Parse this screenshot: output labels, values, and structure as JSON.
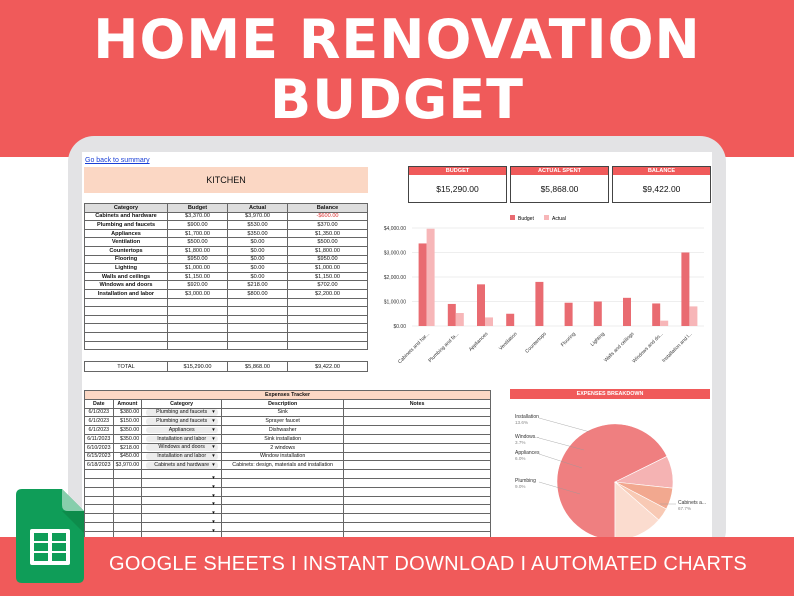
{
  "banner": {
    "title_line1": "HOME RENOVATION",
    "title_line2": "BUDGET",
    "footer_text": "GOOGLE SHEETS I INSTANT DOWNLOAD I AUTOMATED CHARTS"
  },
  "icons": {
    "sheets_logo": "google-sheets-icon"
  },
  "colors": {
    "accent": "#f05a5a",
    "peach": "#fbd7c4",
    "budget_bar": "#e96b71",
    "actual_bar": "#f7b6b8"
  },
  "sheet": {
    "back_link": "Go back to summary",
    "section_title": "KITCHEN",
    "table_headers": [
      "Category",
      "Budget",
      "Actual",
      "Balance"
    ],
    "rows": [
      {
        "category": "Cabinets and hardware",
        "budget": "$3,370.00",
        "actual": "$3,970.00",
        "balance": "-$600.00"
      },
      {
        "category": "Plumbing and faucets",
        "budget": "$900.00",
        "actual": "$530.00",
        "balance": "$370.00"
      },
      {
        "category": "Appliances",
        "budget": "$1,700.00",
        "actual": "$350.00",
        "balance": "$1,350.00"
      },
      {
        "category": "Ventilation",
        "budget": "$500.00",
        "actual": "$0.00",
        "balance": "$500.00"
      },
      {
        "category": "Countertops",
        "budget": "$1,800.00",
        "actual": "$0.00",
        "balance": "$1,800.00"
      },
      {
        "category": "Flooring",
        "budget": "$950.00",
        "actual": "$0.00",
        "balance": "$950.00"
      },
      {
        "category": "Lighting",
        "budget": "$1,000.00",
        "actual": "$0.00",
        "balance": "$1,000.00"
      },
      {
        "category": "Walls and ceilings",
        "budget": "$1,150.00",
        "actual": "$0.00",
        "balance": "$1,150.00"
      },
      {
        "category": "Windows and doors",
        "budget": "$920.00",
        "actual": "$218.00",
        "balance": "$702.00"
      },
      {
        "category": "Installation and labor",
        "budget": "$3,000.00",
        "actual": "$800.00",
        "balance": "$2,200.00"
      }
    ],
    "total": {
      "label": "TOTAL",
      "budget": "$15,290.00",
      "actual": "$5,868.00",
      "balance": "$9,422.00"
    },
    "kpis": {
      "budget_label": "BUDGET",
      "budget_value": "$15,290.00",
      "actual_label": "ACTUAL SPENT",
      "actual_value": "$5,868.00",
      "balance_label": "BALANCE",
      "balance_value": "$9,422.00"
    },
    "tracker": {
      "title": "Expenses Tracker",
      "headers": [
        "Date",
        "Amount",
        "Category",
        "Description",
        "Notes"
      ],
      "rows": [
        {
          "date": "6/1/2023",
          "amount": "$380.00",
          "category": "Plumbing and faucets",
          "description": "Sink"
        },
        {
          "date": "6/1/2023",
          "amount": "$150.00",
          "category": "Plumbing and faucets",
          "description": "Sprayer faucet"
        },
        {
          "date": "6/1/2023",
          "amount": "$350.00",
          "category": "Appliances",
          "description": "Dishwasher"
        },
        {
          "date": "6/11/2023",
          "amount": "$350.00",
          "category": "Installation and labor",
          "description": "Sink installation"
        },
        {
          "date": "6/10/2023",
          "amount": "$218.00",
          "category": "Windows and doors",
          "description": "2 windows"
        },
        {
          "date": "6/15/2023",
          "amount": "$450.00",
          "category": "Installation and labor",
          "description": "Window installation"
        },
        {
          "date": "6/18/2023",
          "amount": "$3,970.00",
          "category": "Cabinets and hardware",
          "description": "Cabinets: design, materials and installation"
        }
      ]
    },
    "pie_title": "EXPENSES BREAKDOWN"
  },
  "chart_data": [
    {
      "type": "bar",
      "categories": [
        "Cabinets and har...",
        "Plumbing and fa...",
        "Appliances",
        "Ventilation",
        "Countertops",
        "Flooring",
        "Lighting",
        "Walls and ceilings",
        "Windows and do...",
        "Installation and l..."
      ],
      "series": [
        {
          "name": "Budget",
          "values": [
            3370,
            900,
            1700,
            500,
            1800,
            950,
            1000,
            1150,
            920,
            3000
          ]
        },
        {
          "name": "Actual",
          "values": [
            3970,
            530,
            350,
            0,
            0,
            0,
            0,
            0,
            218,
            800
          ]
        }
      ],
      "ylim": [
        0,
        4000
      ],
      "yticks": [
        "$0.00",
        "$1,000.00",
        "$2,000.00",
        "$3,000.00",
        "$4,000.00"
      ],
      "legend_position": "top",
      "grid": true
    },
    {
      "type": "pie",
      "slices": [
        {
          "label": "Cabinets a...",
          "pct_label": "67.7%",
          "value": 67.7
        },
        {
          "label": "Plumbing",
          "pct_label": "9.0%",
          "value": 9.0
        },
        {
          "label": "Appliances",
          "pct_label": "6.0%",
          "value": 6.0
        },
        {
          "label": "Windows...",
          "pct_label": "3.7%",
          "value": 3.7
        },
        {
          "label": "Installation",
          "pct_label": "13.6%",
          "value": 13.6
        }
      ]
    }
  ]
}
